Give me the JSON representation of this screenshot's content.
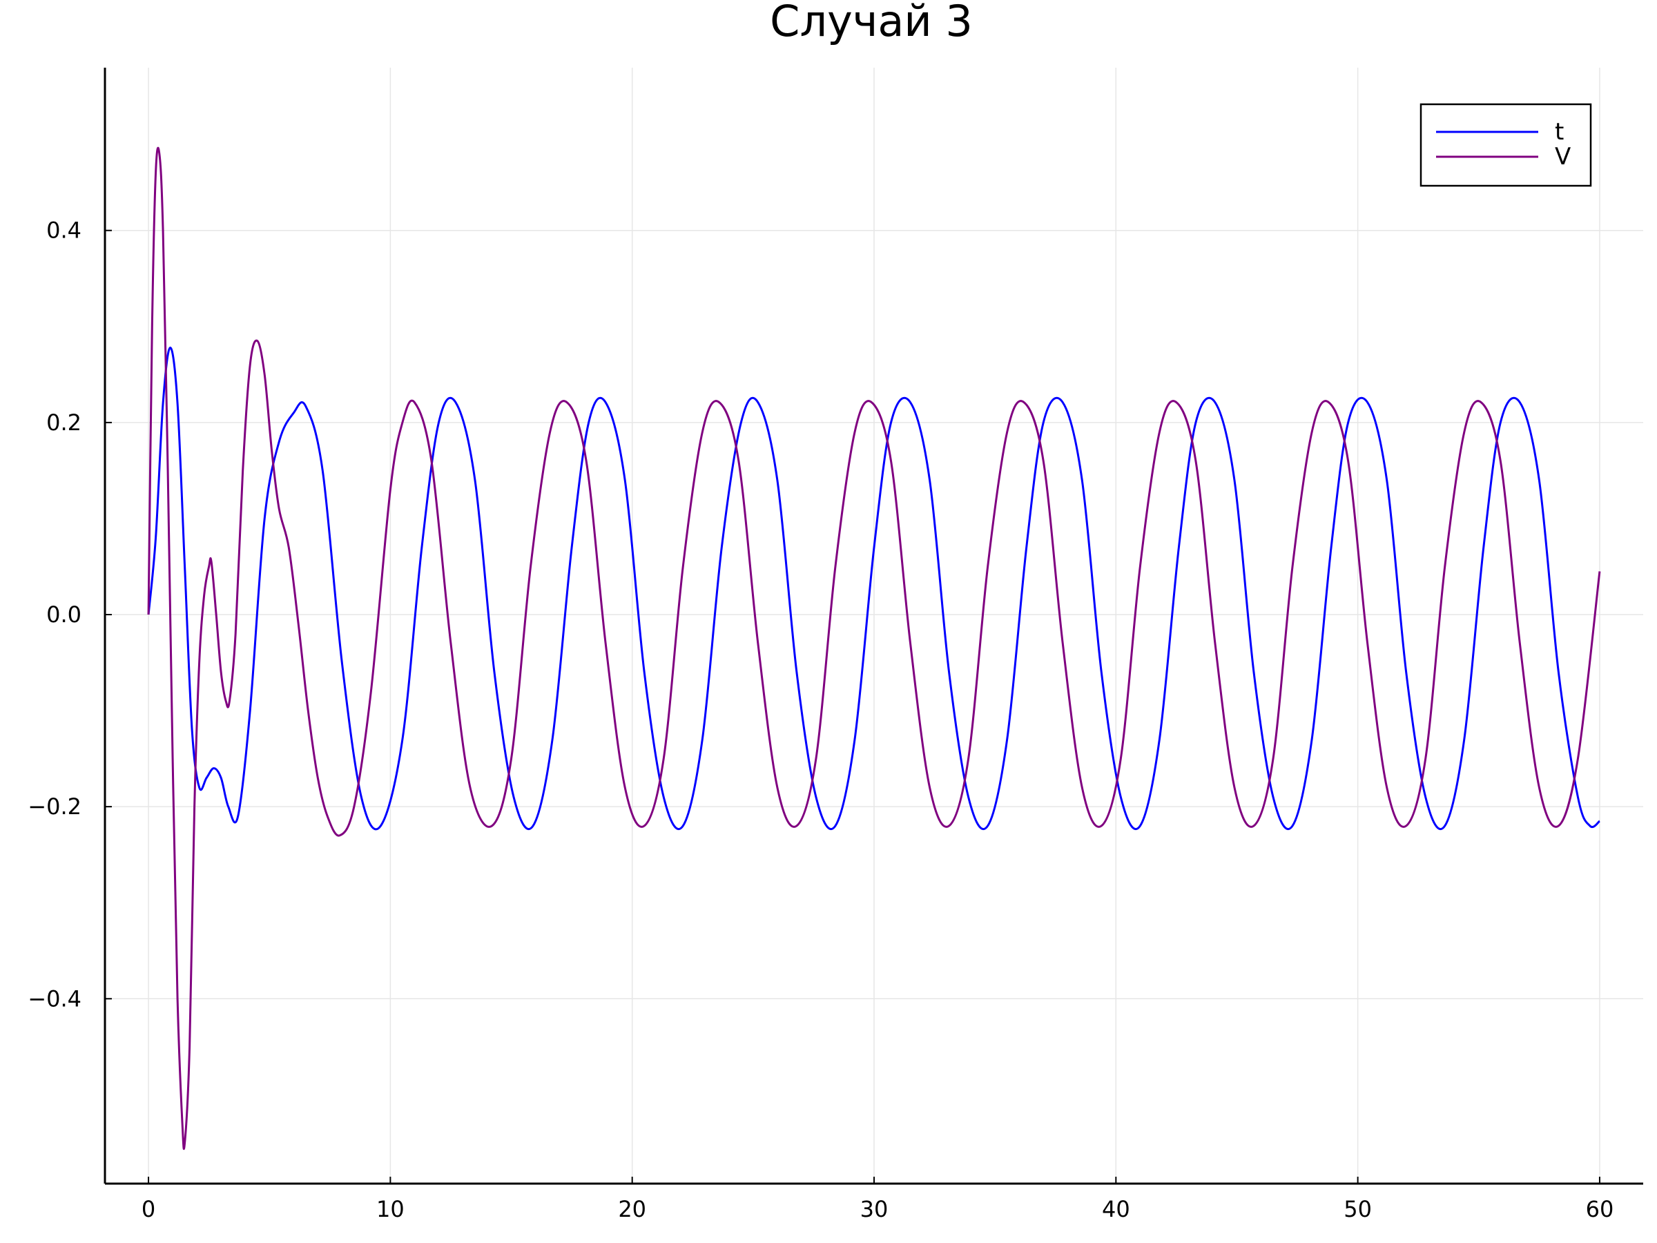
{
  "chart_data": {
    "type": "line",
    "title": "Случай 3",
    "xlabel": "",
    "ylabel": "",
    "xlim": [
      -1.8,
      61.8
    ],
    "ylim": [
      -0.5925,
      0.5695
    ],
    "xticks": [
      0,
      10,
      20,
      30,
      40,
      50,
      60
    ],
    "xtick_labels": [
      "0",
      "10",
      "20",
      "30",
      "40",
      "50",
      "60"
    ],
    "yticks": [
      -0.4,
      -0.2,
      0.0,
      0.2,
      0.4
    ],
    "ytick_labels": [
      "−0.4",
      "−0.2",
      "0.0",
      "0.2",
      "0.4"
    ],
    "grid": true,
    "legend_position": "top-right",
    "series": [
      {
        "name": "t",
        "color": "#0000ff",
        "x": [
          0,
          0.3,
          0.6,
          0.9,
          1.2,
          1.5,
          1.8,
          2.1,
          2.4,
          2.7,
          3.0,
          3.3,
          3.7,
          4.2,
          4.8,
          5.4,
          6.0,
          6.5,
          7.2,
          8.0,
          8.8,
          9.6,
          10.5,
          11.3,
          12.0,
          12.7,
          13.5,
          14.3,
          15.1,
          15.9,
          16.7,
          17.5,
          18.2,
          18.9,
          19.7,
          20.5,
          21.3,
          22.1,
          22.9,
          23.7,
          24.5,
          25.2,
          26.0,
          26.8,
          27.6,
          28.4,
          29.2,
          30.0,
          30.7,
          31.5,
          32.3,
          33.1,
          33.9,
          34.7,
          35.5,
          36.3,
          37.0,
          37.8,
          38.6,
          39.4,
          40.2,
          41.0,
          41.8,
          42.6,
          43.3,
          44.1,
          44.9,
          45.7,
          46.5,
          47.3,
          48.1,
          48.9,
          49.6,
          50.4,
          51.2,
          52.0,
          52.8,
          53.6,
          54.4,
          55.2,
          55.9,
          56.7,
          57.5,
          58.3,
          59.1,
          59.6,
          60.0
        ],
        "y": [
          0.0,
          0.08,
          0.22,
          0.278,
          0.22,
          0.05,
          -0.12,
          -0.18,
          -0.17,
          -0.16,
          -0.17,
          -0.2,
          -0.21,
          -0.1,
          0.1,
          0.18,
          0.21,
          0.217,
          0.15,
          -0.05,
          -0.19,
          -0.22,
          -0.13,
          0.07,
          0.2,
          0.221,
          0.14,
          -0.06,
          -0.19,
          -0.22,
          -0.13,
          0.07,
          0.2,
          0.221,
          0.14,
          -0.06,
          -0.19,
          -0.22,
          -0.13,
          0.07,
          0.2,
          0.221,
          0.14,
          -0.06,
          -0.19,
          -0.22,
          -0.13,
          0.07,
          0.2,
          0.221,
          0.14,
          -0.06,
          -0.19,
          -0.22,
          -0.13,
          0.07,
          0.2,
          0.221,
          0.14,
          -0.06,
          -0.19,
          -0.22,
          -0.13,
          0.07,
          0.2,
          0.221,
          0.14,
          -0.06,
          -0.19,
          -0.22,
          -0.13,
          0.07,
          0.2,
          0.221,
          0.14,
          -0.06,
          -0.19,
          -0.22,
          -0.13,
          0.07,
          0.2,
          0.221,
          0.14,
          -0.06,
          -0.19,
          -0.22,
          -0.215
        ]
      },
      {
        "name": "V",
        "color": "#800080",
        "x": [
          0,
          0.15,
          0.3,
          0.45,
          0.6,
          0.8,
          1.0,
          1.2,
          1.4,
          1.5,
          1.7,
          1.9,
          2.1,
          2.3,
          2.5,
          2.6,
          2.8,
          3.0,
          3.2,
          3.35,
          3.6,
          3.9,
          4.2,
          4.5,
          4.8,
          5.1,
          5.4,
          5.8,
          6.2,
          6.6,
          7.0,
          7.4,
          7.9,
          8.5,
          9.2,
          10.0,
          10.5,
          11.0,
          11.7,
          12.5,
          13.3,
          14.2,
          15.0,
          15.8,
          16.6,
          17.3,
          18.1,
          18.9,
          19.7,
          20.5,
          21.3,
          22.1,
          22.9,
          23.6,
          24.4,
          25.2,
          26.0,
          26.8,
          27.6,
          28.4,
          29.2,
          29.9,
          30.7,
          31.5,
          32.3,
          33.1,
          33.9,
          34.7,
          35.5,
          36.2,
          37.0,
          37.8,
          38.6,
          39.4,
          40.2,
          41.0,
          41.8,
          42.5,
          43.3,
          44.1,
          44.9,
          45.7,
          46.5,
          47.3,
          48.1,
          48.8,
          49.6,
          50.4,
          51.2,
          52.0,
          52.8,
          53.6,
          54.4,
          55.1,
          55.9,
          56.7,
          57.5,
          58.3,
          59.1,
          60.0
        ],
        "y": [
          0.0,
          0.3,
          0.46,
          0.48,
          0.4,
          0.15,
          -0.15,
          -0.4,
          -0.53,
          -0.55,
          -0.45,
          -0.2,
          -0.05,
          0.02,
          0.05,
          0.055,
          0.0,
          -0.06,
          -0.09,
          -0.09,
          -0.02,
          0.15,
          0.26,
          0.285,
          0.25,
          0.17,
          0.11,
          0.07,
          -0.01,
          -0.1,
          -0.17,
          -0.21,
          -0.23,
          -0.2,
          -0.08,
          0.13,
          0.2,
          0.221,
          0.16,
          -0.03,
          -0.18,
          -0.22,
          -0.15,
          0.05,
          0.19,
          0.221,
          0.16,
          -0.03,
          -0.18,
          -0.22,
          -0.15,
          0.05,
          0.19,
          0.221,
          0.16,
          -0.03,
          -0.18,
          -0.22,
          -0.15,
          0.05,
          0.19,
          0.221,
          0.16,
          -0.03,
          -0.18,
          -0.22,
          -0.15,
          0.05,
          0.19,
          0.221,
          0.16,
          -0.03,
          -0.18,
          -0.22,
          -0.15,
          0.05,
          0.19,
          0.221,
          0.16,
          -0.03,
          -0.18,
          -0.22,
          -0.15,
          0.05,
          0.19,
          0.221,
          0.16,
          -0.03,
          -0.18,
          -0.22,
          -0.15,
          0.05,
          0.19,
          0.221,
          0.16,
          -0.03,
          -0.18,
          -0.22,
          -0.15,
          0.045
        ]
      }
    ]
  }
}
